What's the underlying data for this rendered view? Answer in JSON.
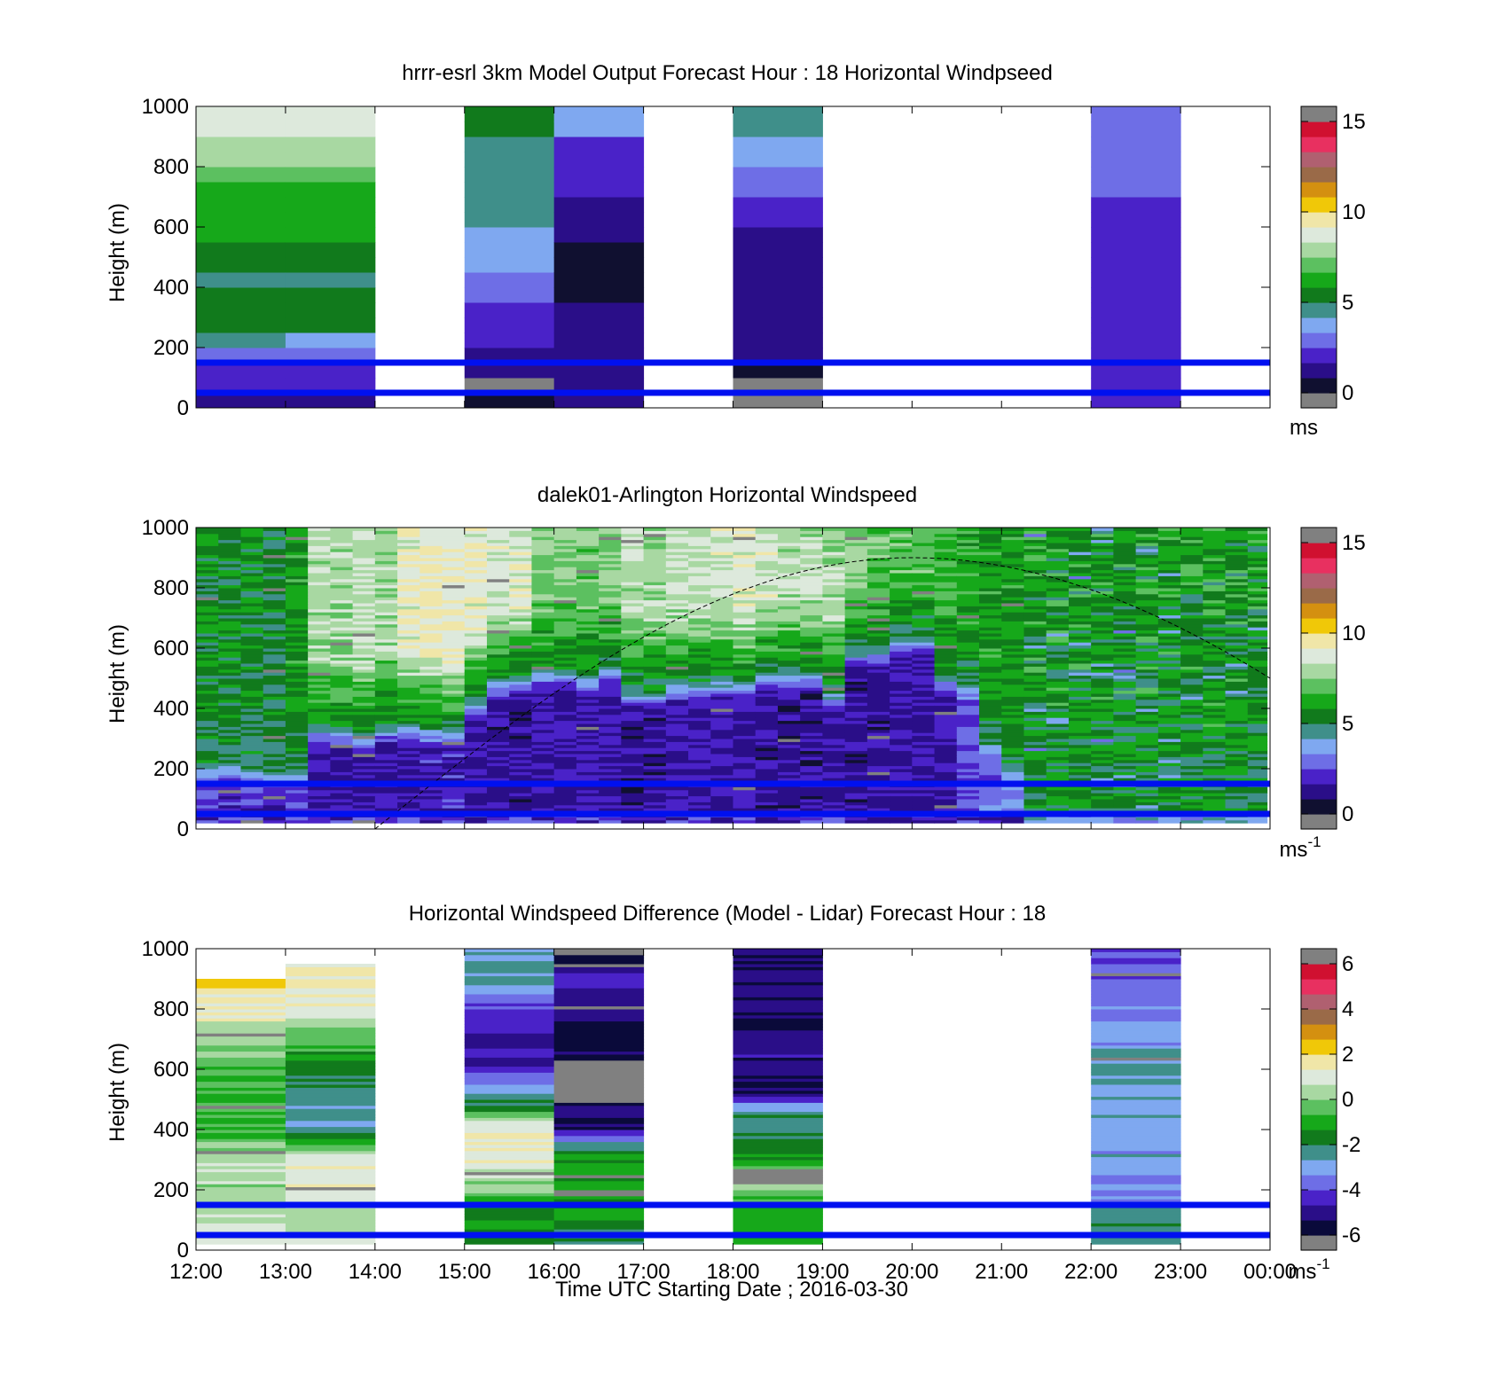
{
  "figure": {
    "xticks": [
      "12:00",
      "13:00",
      "14:00",
      "15:00",
      "16:00",
      "17:00",
      "18:00",
      "19:00",
      "20:00",
      "21:00",
      "22:00",
      "23:00",
      "00:00"
    ],
    "xlabel": "Time UTC  Starting Date ; 2016-03-30"
  },
  "colors": {
    "speed_scale": [
      "#101030",
      "#2a0e88",
      "#4a22c8",
      "#6e6ee6",
      "#7fa8f0",
      "#3f8f8a",
      "#117a1c",
      "#16a81a",
      "#5cc060",
      "#a8d8a2",
      "#dde9dc",
      "#f0e6a8",
      "#f0c808",
      "#d49010",
      "#9a6a48",
      "#b06070",
      "#e83060",
      "#d01030"
    ],
    "diff_scale": [
      "#0a0a3a",
      "#2a0e88",
      "#4a22c8",
      "#6e6ee6",
      "#7fa8f0",
      "#3f8f8a",
      "#117a1c",
      "#16a81a",
      "#5cc060",
      "#a8d8a2",
      "#dde9dc",
      "#f0e6a8",
      "#f0c808",
      "#d49010",
      "#9a6a48",
      "#b06070",
      "#e83060",
      "#d01030"
    ],
    "out_of_range": "#808080",
    "reference_lines": "#0010f0"
  },
  "chart_data": [
    {
      "type": "heatmap",
      "title": "hrrr-esrl 3km Model Output   Forecast Hour : 18 Horizontal Windpseed",
      "ylabel": "Height (m)",
      "ylim": [
        0,
        1000
      ],
      "yticks": [
        "0",
        "200",
        "400",
        "600",
        "800",
        "1000"
      ],
      "colorbar": {
        "range": [
          0,
          15
        ],
        "ticks": [
          "0",
          "5",
          "10",
          "15"
        ],
        "unit": "ms"
      },
      "reference_lines_m": [
        50,
        150
      ],
      "columns": [
        {
          "start": "12:00",
          "end": "13:00",
          "heights_m": [
            25,
            75,
            125,
            175,
            225,
            275,
            325,
            375,
            425,
            475,
            525,
            575,
            625,
            675,
            725,
            775,
            825,
            875,
            925,
            975
          ],
          "values": [
            1.5,
            2.0,
            2.3,
            3.2,
            4.3,
            5.5,
            5.0,
            5.2,
            4.8,
            5.0,
            5.5,
            6.0,
            6.2,
            6.6,
            6.6,
            7.2,
            7.5,
            8.2,
            9.0,
            9.0
          ]
        },
        {
          "start": "13:00",
          "end": "14:00",
          "heights_m": [
            25,
            75,
            125,
            175,
            225,
            275,
            325,
            375,
            425,
            475,
            525,
            575,
            625,
            675,
            725,
            775,
            825,
            875,
            925,
            975
          ],
          "values": [
            1.5,
            2.0,
            2.3,
            3.2,
            3.8,
            5.0,
            5.0,
            5.2,
            4.8,
            5.0,
            5.5,
            6.0,
            6.2,
            6.6,
            6.6,
            7.2,
            7.5,
            8.2,
            9.0,
            9.0
          ]
        },
        {
          "start": "15:00",
          "end": "16:00",
          "heights_m": [
            25,
            75,
            125,
            175,
            225,
            275,
            325,
            375,
            425,
            475,
            525,
            575,
            625,
            675,
            725,
            775,
            825,
            875,
            925,
            975
          ],
          "values": [
            0.5,
            -1,
            1.0,
            1.5,
            1.8,
            2.0,
            2.2,
            2.5,
            3.0,
            3.5,
            3.8,
            3.9,
            4.6,
            4.5,
            4.6,
            4.6,
            4.6,
            4.7,
            5.2,
            5.3
          ]
        },
        {
          "start": "16:00",
          "end": "17:00",
          "heights_m": [
            25,
            75,
            125,
            175,
            225,
            275,
            325,
            375,
            425,
            475,
            525,
            575,
            625,
            675,
            725,
            775,
            825,
            875,
            925,
            975
          ],
          "values": [
            1.0,
            1.0,
            1.0,
            1.0,
            1.0,
            1.0,
            1.0,
            0.5,
            0.5,
            0.5,
            0.8,
            0.9,
            1.5,
            1.5,
            1.8,
            1.8,
            2.2,
            2.2,
            3.5,
            3.5
          ]
        },
        {
          "start": "18:00",
          "end": "19:00",
          "heights_m": [
            25,
            75,
            125,
            175,
            225,
            275,
            325,
            375,
            425,
            475,
            525,
            575,
            625,
            675,
            725,
            775,
            825,
            875,
            925,
            975
          ],
          "values": [
            -1,
            -1,
            0.8,
            1.0,
            1.2,
            1.2,
            1.2,
            1.2,
            1.2,
            1.2,
            1.2,
            1.2,
            2.0,
            2.0,
            3.0,
            3.0,
            3.9,
            3.9,
            4.3,
            4.3
          ]
        },
        {
          "start": "22:00",
          "end": "23:00",
          "heights_m": [
            25,
            75,
            125,
            175,
            225,
            275,
            325,
            375,
            425,
            475,
            525,
            575,
            625,
            675,
            725,
            775,
            825,
            875,
            925,
            975
          ],
          "values": [
            2.2,
            2.2,
            2.2,
            2.2,
            2.2,
            2.2,
            2.2,
            2.2,
            2.2,
            2.2,
            2.2,
            2.2,
            2.3,
            2.4,
            2.5,
            2.5,
            2.6,
            2.7,
            2.8,
            3.0
          ]
        }
      ]
    },
    {
      "type": "heatmap",
      "title": "dalek01-Arlington  Horizontal Windspeed",
      "ylabel": "Height (m)",
      "ylim": [
        0,
        1000
      ],
      "yticks": [
        "0",
        "200",
        "400",
        "600",
        "800",
        "1000"
      ],
      "colorbar": {
        "range": [
          0,
          15
        ],
        "ticks": [
          "0",
          "5",
          "10",
          "15"
        ],
        "unit": "ms-1"
      },
      "reference_lines_m": [
        50,
        150
      ],
      "x_start": "12:00",
      "x_end": "23:58",
      "column_minutes": 15,
      "layer_boundary_m": [
        180,
        170,
        160,
        160,
        300,
        280,
        310,
        310,
        300,
        390,
        460,
        470,
        490,
        470,
        500,
        430,
        420,
        450,
        460,
        450,
        480,
        480,
        420,
        560,
        560,
        600,
        480,
        450,
        260,
        180
      ],
      "lower_layer_speed": [
        2.0,
        2.0,
        1.8,
        2.3,
        1.6,
        1.5,
        1.8,
        1.7,
        2.0,
        1.6,
        1.5,
        1.4,
        1.6,
        1.7,
        1.5,
        1.4,
        1.4,
        1.8,
        1.7,
        1.6,
        1.4,
        1.3,
        1.5,
        1.4,
        1.5,
        1.6,
        1.8,
        2.5,
        3.0,
        3.3
      ],
      "upper_layer_speed": [
        5.5,
        5.5,
        5.2,
        6.0,
        8.0,
        8.3,
        7.8,
        9.0,
        9.2,
        9.0,
        8.5,
        8.8,
        7.5,
        7.2,
        7.4,
        8.2,
        7.8,
        8.3,
        8.6,
        8.8,
        8.5,
        8.2,
        8.0,
        7.5,
        7.0,
        7.0,
        6.8,
        6.5,
        6.0,
        6.0
      ],
      "far_region": {
        "start": "21:15",
        "end": "23:58",
        "speed_range": [
          4.3,
          6.5
        ]
      },
      "dashed_curve": {
        "start": "14:00",
        "end": "00:00",
        "peak_time": "20:00",
        "peak_m": 900,
        "end_m": 500
      }
    },
    {
      "type": "heatmap",
      "title": "Horizontal Windspeed Difference (Model - Lidar) Forecast Hour : 18",
      "ylabel": "Height (m)",
      "ylim": [
        0,
        1000
      ],
      "yticks": [
        "0",
        "200",
        "400",
        "600",
        "800",
        "1000"
      ],
      "colorbar": {
        "range": [
          -6,
          6
        ],
        "ticks": [
          "-6",
          "-4",
          "-2",
          "0",
          "2",
          "4",
          "6"
        ],
        "unit": "ms-1"
      },
      "reference_lines_m": [
        50,
        150
      ],
      "columns": [
        {
          "start": "12:00",
          "end": "13:00",
          "profile": [
            [
              25,
              1.2
            ],
            [
              100,
              0.4
            ],
            [
              200,
              0.2
            ],
            [
              300,
              0.5
            ],
            [
              400,
              -0.8
            ],
            [
              500,
              -0.5
            ],
            [
              600,
              -0.6
            ],
            [
              700,
              0.2
            ],
            [
              800,
              1.5
            ],
            [
              860,
              1.8
            ],
            [
              900,
              2.5
            ]
          ]
        },
        {
          "start": "13:00",
          "end": "14:00",
          "profile": [
            [
              25,
              1.0
            ],
            [
              100,
              0.4
            ],
            [
              200,
              1.5
            ],
            [
              300,
              1.0
            ],
            [
              400,
              -2.5
            ],
            [
              500,
              -2.5
            ],
            [
              600,
              -1.8
            ],
            [
              700,
              -0.5
            ],
            [
              800,
              1.2
            ],
            [
              900,
              1.5
            ],
            [
              950,
              1.3
            ]
          ]
        },
        {
          "start": "15:00",
          "end": "16:00",
          "profile": [
            [
              25,
              -1.5
            ],
            [
              100,
              -1.5
            ],
            [
              200,
              -0.3
            ],
            [
              300,
              1.2
            ],
            [
              400,
              1.5
            ],
            [
              450,
              -0.5
            ],
            [
              500,
              -2.5
            ],
            [
              560,
              -3.5
            ],
            [
              600,
              -4.3
            ],
            [
              700,
              -4.5
            ],
            [
              800,
              -4.0
            ],
            [
              900,
              -2.5
            ],
            [
              1000,
              -2.5
            ]
          ]
        },
        {
          "start": "16:00",
          "end": "17:00",
          "profile": [
            [
              25,
              -2.0
            ],
            [
              100,
              -1.7
            ],
            [
              200,
              -1.0
            ],
            [
              300,
              -1.3
            ],
            [
              350,
              -2.3
            ],
            [
              400,
              -5.0
            ],
            [
              460,
              -5.5
            ],
            [
              520,
              -7
            ],
            [
              620,
              -7
            ],
            [
              640,
              -5.5
            ],
            [
              700,
              -5.5
            ],
            [
              800,
              -5.0
            ],
            [
              900,
              -4.5
            ],
            [
              960,
              -5.5
            ],
            [
              1000,
              -7
            ]
          ]
        },
        {
          "start": "18:00",
          "end": "19:00",
          "profile": [
            [
              25,
              -1.0
            ],
            [
              100,
              -1.2
            ],
            [
              200,
              -0.2
            ],
            [
              250,
              -7
            ],
            [
              300,
              -1.0
            ],
            [
              400,
              -2.5
            ],
            [
              450,
              -2.0
            ],
            [
              500,
              -4.0
            ],
            [
              520,
              -5.5
            ],
            [
              600,
              -5.0
            ],
            [
              700,
              -5.0
            ],
            [
              800,
              -5.5
            ],
            [
              900,
              -5.2
            ],
            [
              1000,
              -5.0
            ]
          ]
        },
        {
          "start": "22:00",
          "end": "23:00",
          "profile": [
            [
              25,
              -2.3
            ],
            [
              100,
              -2.3
            ],
            [
              200,
              -3.5
            ],
            [
              300,
              -3.0
            ],
            [
              400,
              -3.2
            ],
            [
              500,
              -2.8
            ],
            [
              600,
              -2.7
            ],
            [
              700,
              -3.2
            ],
            [
              800,
              -3.5
            ],
            [
              900,
              -3.8
            ],
            [
              1000,
              -4.2
            ]
          ]
        }
      ]
    }
  ]
}
